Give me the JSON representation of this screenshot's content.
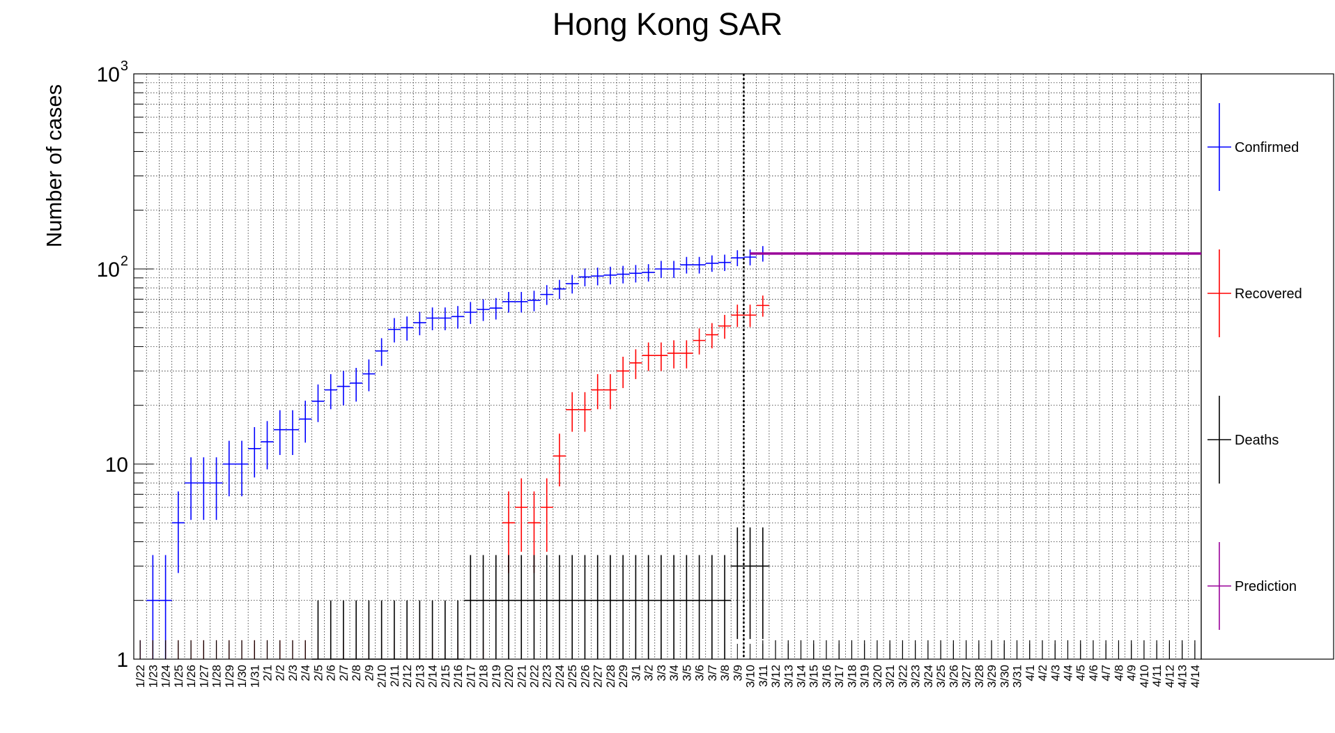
{
  "chart_data": {
    "type": "scatter",
    "title": "Hong Kong SAR",
    "ylabel": "Number of cases",
    "xlabel": "",
    "y_scale": "log",
    "ylim": [
      1,
      1000
    ],
    "ytick_labels": [
      {
        "base": "1",
        "exp": ""
      },
      {
        "base": "10",
        "exp": ""
      },
      {
        "base": "10",
        "exp": "2"
      },
      {
        "base": "10",
        "exp": "3"
      }
    ],
    "grid": true,
    "legend_position": "right",
    "categories": [
      "1/22",
      "1/23",
      "1/24",
      "1/25",
      "1/26",
      "1/27",
      "1/28",
      "1/29",
      "1/30",
      "1/31",
      "2/1",
      "2/2",
      "2/3",
      "2/4",
      "2/5",
      "2/6",
      "2/7",
      "2/8",
      "2/9",
      "2/10",
      "2/11",
      "2/12",
      "2/13",
      "2/14",
      "2/15",
      "2/16",
      "2/17",
      "2/18",
      "2/19",
      "2/20",
      "2/21",
      "2/22",
      "2/23",
      "2/24",
      "2/25",
      "2/26",
      "2/27",
      "2/28",
      "2/29",
      "3/1",
      "3/2",
      "3/3",
      "3/4",
      "3/5",
      "3/6",
      "3/7",
      "3/8",
      "3/9",
      "3/10",
      "3/11",
      "3/12",
      "3/13",
      "3/14",
      "3/15",
      "3/16",
      "3/17",
      "3/18",
      "3/19",
      "3/20",
      "3/21",
      "3/22",
      "3/23",
      "3/24",
      "3/25",
      "3/26",
      "3/27",
      "3/28",
      "3/29",
      "3/30",
      "3/31",
      "4/1",
      "4/2",
      "4/3",
      "4/4",
      "4/5",
      "4/6",
      "4/7",
      "4/8",
      "4/9",
      "4/10",
      "4/11",
      "4/12",
      "4/13",
      "4/14"
    ],
    "vertical_marker": "3/10",
    "series": [
      {
        "name": "Confirmed",
        "color": "#0000ff",
        "values": [
          0,
          2,
          2,
          5,
          8,
          8,
          8,
          10,
          10,
          12,
          13,
          15,
          15,
          17,
          21,
          24,
          25,
          26,
          29,
          38,
          49,
          50,
          53,
          56,
          56,
          57,
          60,
          62,
          63,
          68,
          68,
          69,
          74,
          79,
          84,
          91,
          92,
          93,
          94,
          95,
          96,
          100,
          100,
          105,
          105,
          107,
          108,
          114,
          115,
          120
        ]
      },
      {
        "name": "Recovered",
        "color": "#ff0000",
        "values": [
          0,
          0,
          0,
          0,
          0,
          0,
          0,
          0,
          0,
          0,
          0,
          0,
          0,
          0,
          0,
          0,
          0,
          0,
          0,
          0,
          0,
          0,
          0,
          0,
          0,
          0,
          0,
          0,
          0,
          5,
          6,
          5,
          6,
          11,
          19,
          19,
          24,
          24,
          30,
          33,
          36,
          36,
          37,
          37,
          43,
          46,
          51,
          58,
          58,
          65
        ]
      },
      {
        "name": "Deaths",
        "color": "#000000",
        "values": [
          0,
          0,
          0,
          0,
          0,
          0,
          0,
          0,
          0,
          0,
          0,
          0,
          0,
          0,
          1,
          1,
          1,
          1,
          1,
          1,
          1,
          1,
          1,
          1,
          1,
          1,
          2,
          2,
          2,
          2,
          2,
          2,
          2,
          2,
          2,
          2,
          2,
          2,
          2,
          2,
          2,
          2,
          2,
          2,
          2,
          2,
          2,
          3,
          3,
          3
        ]
      },
      {
        "name": "Prediction",
        "color": "#990099",
        "start_category": "3/10",
        "end_category": "4/14",
        "value": 120
      }
    ]
  }
}
